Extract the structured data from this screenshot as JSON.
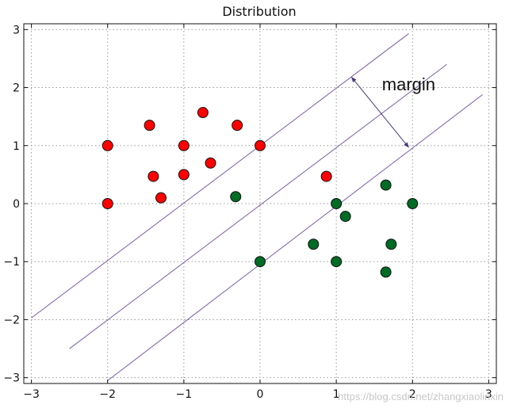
{
  "chart_data": {
    "type": "scatter",
    "title": "Distribution",
    "xlabel": "",
    "ylabel": "",
    "xlim": [
      -3.1,
      3.1
    ],
    "ylim": [
      -3.1,
      3.1
    ],
    "grid": true,
    "xticks": [
      -3,
      -2,
      -1,
      0,
      1,
      2,
      3
    ],
    "yticks": [
      -3,
      -2,
      -1,
      0,
      1,
      2,
      3
    ],
    "xtick_labels": [
      "−3",
      "−2",
      "−1",
      "0",
      "1",
      "2",
      "3"
    ],
    "ytick_labels": [
      "−3",
      "−2",
      "−1",
      "0",
      "1",
      "2",
      "3"
    ],
    "series": [
      {
        "color": "#ff0000",
        "points": [
          {
            "x": -2.0,
            "y": 1.0
          },
          {
            "x": -2.0,
            "y": 0.0
          },
          {
            "x": -1.45,
            "y": 1.35
          },
          {
            "x": -1.4,
            "y": 0.47
          },
          {
            "x": -1.3,
            "y": 0.1
          },
          {
            "x": -1.0,
            "y": 1.0
          },
          {
            "x": -1.0,
            "y": 0.5
          },
          {
            "x": -0.75,
            "y": 1.57
          },
          {
            "x": -0.65,
            "y": 0.7
          },
          {
            "x": -0.3,
            "y": 1.35
          },
          {
            "x": 0.0,
            "y": 1.0
          },
          {
            "x": 0.87,
            "y": 0.47
          }
        ]
      },
      {
        "color": "#006b24",
        "points": [
          {
            "x": -0.32,
            "y": 0.12
          },
          {
            "x": 0.0,
            "y": -1.0
          },
          {
            "x": 0.7,
            "y": -0.7
          },
          {
            "x": 1.0,
            "y": 0.0
          },
          {
            "x": 1.0,
            "y": -1.0
          },
          {
            "x": 1.12,
            "y": -0.22
          },
          {
            "x": 1.65,
            "y": 0.32
          },
          {
            "x": 1.65,
            "y": -1.18
          },
          {
            "x": 1.72,
            "y": -0.7
          },
          {
            "x": 2.0,
            "y": 0.0
          }
        ]
      }
    ],
    "lines": [
      {
        "x1": -3.0,
        "y1": -1.97,
        "x2": 1.95,
        "y2": 2.93
      },
      {
        "x1": -2.5,
        "y1": -2.5,
        "x2": 2.45,
        "y2": 2.4
      },
      {
        "x1": -2.0,
        "y1": -3.05,
        "x2": 2.92,
        "y2": 1.88
      }
    ],
    "line_color": "#7a5ea8",
    "margin_arrow": {
      "x1": 1.2,
      "y1": 2.18,
      "x2": 1.95,
      "y2": 0.97
    },
    "annotations": [
      {
        "text": "margin",
        "x": 1.6,
        "y": 1.95
      }
    ],
    "watermark": "https://blog.csdn.net/zhangxiaolinxin"
  }
}
